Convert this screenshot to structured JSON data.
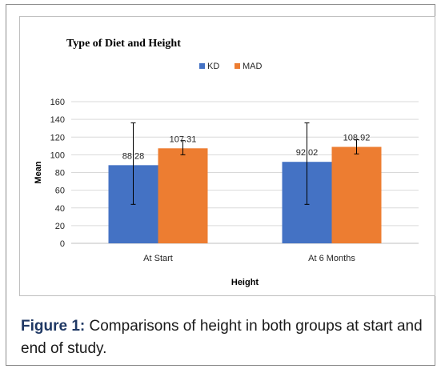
{
  "chart_data": {
    "type": "bar",
    "title": "Type of Diet and Height",
    "xlabel": "Height",
    "ylabel": "Mean",
    "categories": [
      "At Start",
      "At 6 Months"
    ],
    "series": [
      {
        "name": "KD",
        "values": [
          88.28,
          92.02
        ],
        "error_low": [
          44,
          44
        ],
        "error_high": [
          136,
          136
        ],
        "color": "#4472c4"
      },
      {
        "name": "MAD",
        "values": [
          107.31,
          108.92
        ],
        "error_low": [
          100,
          101
        ],
        "error_high": [
          116,
          117
        ],
        "color": "#ed7d31"
      }
    ],
    "data_labels": [
      "88.28",
      "92.02",
      "107.31",
      "108.92"
    ],
    "yticks": [
      "0",
      "20",
      "40",
      "60",
      "80",
      "100",
      "120",
      "140",
      "160"
    ],
    "ylim": [
      0,
      160
    ],
    "grid": true,
    "legend_position": "top-center"
  },
  "caption": {
    "label": "Figure 1:",
    "text": " Comparisons of height in both groups at start and end of study."
  },
  "colors": {
    "kd": "#4472c4",
    "mad": "#ed7d31",
    "gridline": "#d9d9d9",
    "caption_label": "#1f3864"
  }
}
